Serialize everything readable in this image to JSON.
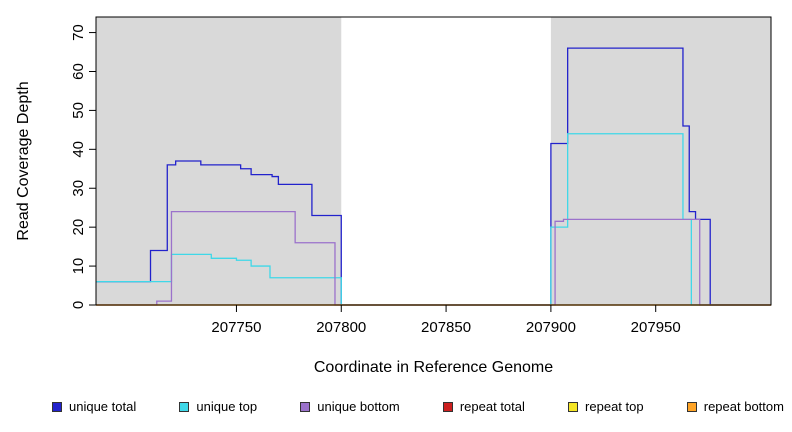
{
  "chart_data": {
    "type": "line",
    "title": "",
    "xlabel": "Coordinate in Reference Genome",
    "ylabel": "Read Coverage Depth",
    "xlim": [
      207683,
      208005
    ],
    "ylim": [
      0,
      74
    ],
    "xticks": [
      207750,
      207800,
      207850,
      207900,
      207950
    ],
    "yticks": [
      0,
      10,
      20,
      30,
      40,
      50,
      60,
      70
    ],
    "grid": false,
    "legend_position": "bottom",
    "step_interpolation": "step-after",
    "shaded_regions": [
      {
        "x0": 207683,
        "x1": 207800,
        "color": "#D9D9D9"
      },
      {
        "x0": 207900,
        "x1": 208005,
        "color": "#D9D9D9"
      }
    ],
    "series": [
      {
        "name": "unique total",
        "color": "#2222CC",
        "points": [
          [
            207683,
            6
          ],
          [
            207709,
            14
          ],
          [
            207717,
            36
          ],
          [
            207721,
            37
          ],
          [
            207733,
            36
          ],
          [
            207752,
            35
          ],
          [
            207757,
            33.5
          ],
          [
            207767,
            33
          ],
          [
            207770,
            31
          ],
          [
            207786,
            23
          ],
          [
            207800,
            0
          ],
          [
            207900,
            41.5
          ],
          [
            207908,
            66
          ],
          [
            207963,
            46
          ],
          [
            207966,
            24
          ],
          [
            207969,
            22
          ],
          [
            207976,
            0
          ],
          [
            208005,
            0
          ]
        ]
      },
      {
        "name": "unique top",
        "color": "#3FD8E8",
        "points": [
          [
            207683,
            6
          ],
          [
            207719,
            13
          ],
          [
            207738,
            12
          ],
          [
            207750,
            11.5
          ],
          [
            207757,
            10
          ],
          [
            207766,
            7
          ],
          [
            207800,
            0
          ],
          [
            207900,
            20
          ],
          [
            207908,
            44
          ],
          [
            207963,
            22
          ],
          [
            207967,
            0
          ],
          [
            208005,
            0
          ]
        ]
      },
      {
        "name": "unique bottom",
        "color": "#9B72CB",
        "points": [
          [
            207683,
            0
          ],
          [
            207712,
            1
          ],
          [
            207719,
            24
          ],
          [
            207778,
            16
          ],
          [
            207797,
            0
          ],
          [
            207902,
            21.5
          ],
          [
            207906,
            22
          ],
          [
            207971,
            0
          ],
          [
            208005,
            0
          ]
        ]
      },
      {
        "name": "repeat total",
        "color": "#CC2020",
        "points": [
          [
            207683,
            0
          ],
          [
            208005,
            0
          ]
        ]
      },
      {
        "name": "repeat top",
        "color": "#F5E625",
        "points": [
          [
            207683,
            0
          ],
          [
            208005,
            0
          ]
        ]
      },
      {
        "name": "repeat bottom",
        "color": "#FFA426",
        "points": [
          [
            207683,
            0
          ],
          [
            208005,
            0
          ]
        ]
      }
    ],
    "legend": [
      {
        "label": "unique total",
        "color": "#2222CC"
      },
      {
        "label": "unique top",
        "color": "#3FD8E8"
      },
      {
        "label": "unique bottom",
        "color": "#9B72CB"
      },
      {
        "label": "repeat total",
        "color": "#CC2020"
      },
      {
        "label": "repeat top",
        "color": "#F5E625"
      },
      {
        "label": "repeat bottom",
        "color": "#FFA426"
      }
    ]
  }
}
